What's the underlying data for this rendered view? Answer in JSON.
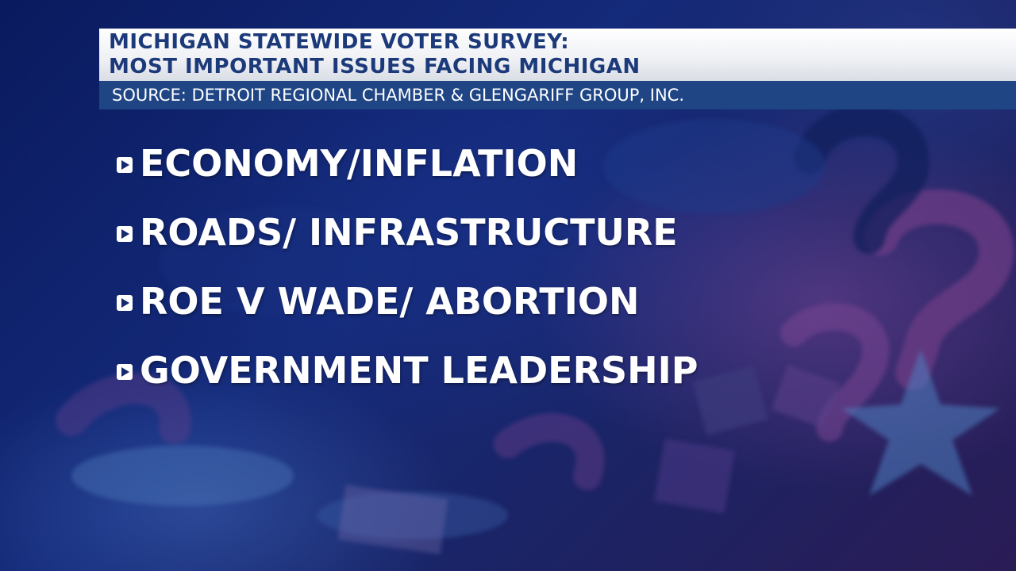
{
  "graphic": {
    "title_line_1": "MICHIGAN STATEWIDE VOTER SURVEY:",
    "title_line_2": "MOST IMPORTANT ISSUES FACING MICHIGAN",
    "source": "SOURCE: DETROIT REGIONAL CHAMBER & GLENGARIFF GROUP, INC."
  },
  "issues": [
    {
      "label": "ECONOMY/INFLATION",
      "icon": "play-arrow-icon"
    },
    {
      "label": "ROADS/ INFRASTRUCTURE",
      "icon": "play-arrow-icon"
    },
    {
      "label": "ROE V WADE/ ABORTION",
      "icon": "play-arrow-icon"
    },
    {
      "label": "GOVERNMENT LEADERSHIP",
      "icon": "play-arrow-icon"
    }
  ],
  "colors": {
    "background": "#0b1a55",
    "title_text": "#1c3a7a",
    "source_bar": "#1f4585",
    "issue_text": "#ffffff"
  }
}
